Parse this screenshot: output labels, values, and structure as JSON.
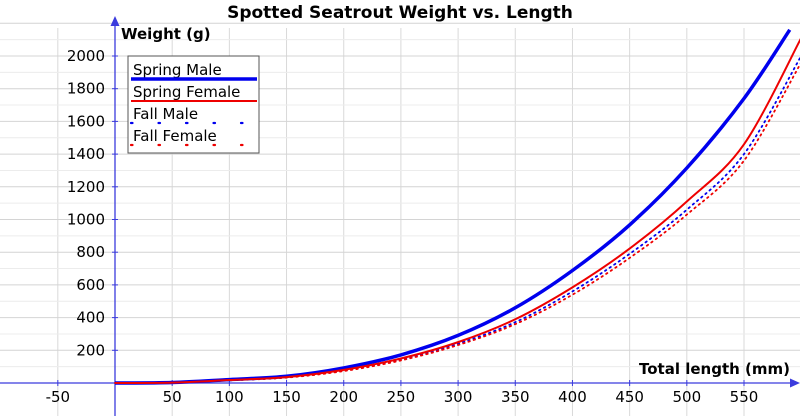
{
  "chart_data": {
    "type": "line",
    "title": "Spotted Seatrout Weight vs. Length",
    "xlabel": "Total length (mm)",
    "ylabel": "Weight (g)",
    "xlim": [
      -80,
      600
    ],
    "ylim": [
      -40,
      2200
    ],
    "x_ticks": [
      -50,
      50,
      100,
      150,
      200,
      250,
      300,
      350,
      400,
      450,
      500,
      550
    ],
    "y_ticks": [
      200,
      400,
      600,
      800,
      1000,
      1200,
      1400,
      1600,
      1800,
      2000
    ],
    "grid": true,
    "legend_position": "top-left",
    "series": [
      {
        "name": "Spring Male",
        "color": "#0000ee",
        "style": "thick-line",
        "x": [
          0,
          50,
          100,
          150,
          200,
          250,
          300,
          350,
          400,
          450,
          500,
          550,
          590
        ],
        "y": [
          0,
          3,
          21,
          41,
          92,
          172,
          291,
          460,
          688,
          967,
          1315,
          1740,
          2160
        ]
      },
      {
        "name": "Spring Female",
        "color": "#ee0000",
        "style": "line",
        "x": [
          0,
          50,
          100,
          150,
          200,
          250,
          300,
          350,
          400,
          450,
          500,
          550,
          600
        ],
        "y": [
          0,
          2,
          18,
          36,
          80,
          150,
          250,
          390,
          585,
          822,
          1110,
          1460,
          2110
        ]
      },
      {
        "name": "Fall Male",
        "color": "#0000ee",
        "style": "dotted",
        "x": [
          0,
          50,
          100,
          150,
          200,
          250,
          300,
          350,
          400,
          450,
          500,
          550,
          600
        ],
        "y": [
          0,
          2,
          17,
          34,
          76,
          143,
          240,
          372,
          560,
          790,
          1060,
          1400,
          2000
        ]
      },
      {
        "name": "Fall Female",
        "color": "#ee0000",
        "style": "dotted",
        "x": [
          0,
          50,
          100,
          150,
          200,
          250,
          300,
          350,
          400,
          450,
          500,
          550,
          600
        ],
        "y": [
          0,
          2,
          16,
          33,
          73,
          138,
          232,
          360,
          540,
          765,
          1030,
          1360,
          1960
        ]
      }
    ]
  }
}
